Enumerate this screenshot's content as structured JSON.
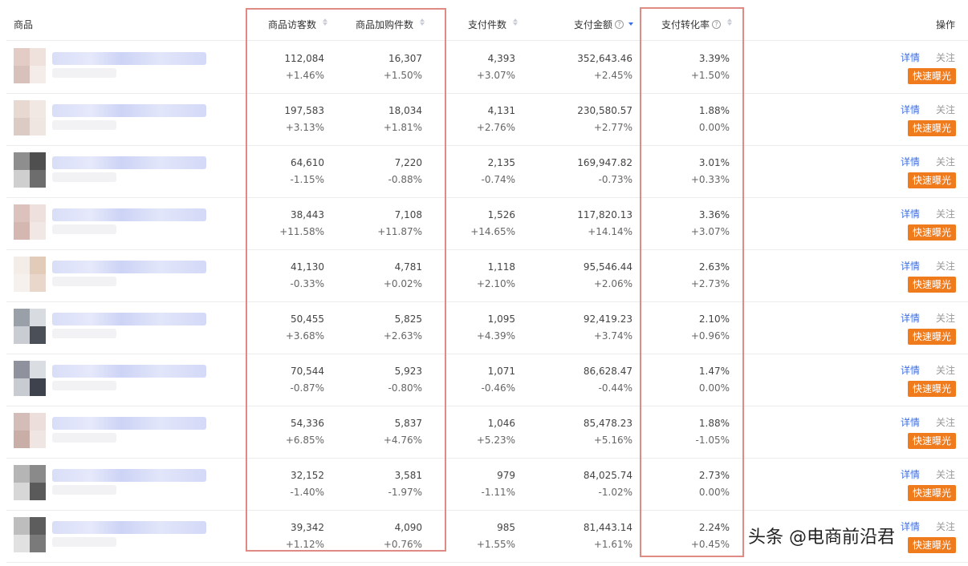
{
  "headers": {
    "product": "商品",
    "visitors": "商品访客数",
    "addcart": "商品加购件数",
    "payitems": "支付件数",
    "payamount": "支付金额",
    "convrate": "支付转化率",
    "ops": "操作",
    "help_glyph": "?"
  },
  "ops_labels": {
    "detail": "详情",
    "follow": "关注",
    "boost": "快速曝光"
  },
  "sort_state": {
    "column": "支付金额",
    "direction": "descending"
  },
  "colors": {
    "accent": "#3b6ee9",
    "boost_button": "#f07b1d",
    "highlight_box": "#e08a86"
  },
  "rows": [
    {
      "visitors": "112,084",
      "visitors_chg": "+1.46%",
      "addcart": "16,307",
      "addcart_chg": "+1.50%",
      "payitems": "4,393",
      "payitems_chg": "+3.07%",
      "payamount": "352,643.46",
      "payamount_chg": "+2.45%",
      "convrate": "3.39%",
      "convrate_chg": "+1.50%"
    },
    {
      "visitors": "197,583",
      "visitors_chg": "+3.13%",
      "addcart": "18,034",
      "addcart_chg": "+1.81%",
      "payitems": "4,131",
      "payitems_chg": "+2.76%",
      "payamount": "230,580.57",
      "payamount_chg": "+2.77%",
      "convrate": "1.88%",
      "convrate_chg": "0.00%"
    },
    {
      "visitors": "64,610",
      "visitors_chg": "-1.15%",
      "addcart": "7,220",
      "addcart_chg": "-0.88%",
      "payitems": "2,135",
      "payitems_chg": "-0.74%",
      "payamount": "169,947.82",
      "payamount_chg": "-0.73%",
      "convrate": "3.01%",
      "convrate_chg": "+0.33%"
    },
    {
      "visitors": "38,443",
      "visitors_chg": "+11.58%",
      "addcart": "7,108",
      "addcart_chg": "+11.87%",
      "payitems": "1,526",
      "payitems_chg": "+14.65%",
      "payamount": "117,820.13",
      "payamount_chg": "+14.14%",
      "convrate": "3.36%",
      "convrate_chg": "+3.07%"
    },
    {
      "visitors": "41,130",
      "visitors_chg": "-0.33%",
      "addcart": "4,781",
      "addcart_chg": "+0.02%",
      "payitems": "1,118",
      "payitems_chg": "+2.10%",
      "payamount": "95,546.44",
      "payamount_chg": "+2.06%",
      "convrate": "2.63%",
      "convrate_chg": "+2.73%"
    },
    {
      "visitors": "50,455",
      "visitors_chg": "+3.68%",
      "addcart": "5,825",
      "addcart_chg": "+2.63%",
      "payitems": "1,095",
      "payitems_chg": "+4.39%",
      "payamount": "92,419.23",
      "payamount_chg": "+3.74%",
      "convrate": "2.10%",
      "convrate_chg": "+0.96%"
    },
    {
      "visitors": "70,544",
      "visitors_chg": "-0.87%",
      "addcart": "5,923",
      "addcart_chg": "-0.80%",
      "payitems": "1,071",
      "payitems_chg": "-0.46%",
      "payamount": "86,628.47",
      "payamount_chg": "-0.44%",
      "convrate": "1.47%",
      "convrate_chg": "0.00%"
    },
    {
      "visitors": "54,336",
      "visitors_chg": "+6.85%",
      "addcart": "5,837",
      "addcart_chg": "+4.76%",
      "payitems": "1,046",
      "payitems_chg": "+5.23%",
      "payamount": "85,478.23",
      "payamount_chg": "+5.16%",
      "convrate": "1.88%",
      "convrate_chg": "-1.05%"
    },
    {
      "visitors": "32,152",
      "visitors_chg": "-1.40%",
      "addcart": "3,581",
      "addcart_chg": "-1.97%",
      "payitems": "979",
      "payitems_chg": "-1.11%",
      "payamount": "84,025.74",
      "payamount_chg": "-1.02%",
      "convrate": "2.73%",
      "convrate_chg": "0.00%"
    },
    {
      "visitors": "39,342",
      "visitors_chg": "+1.12%",
      "addcart": "4,090",
      "addcart_chg": "+0.76%",
      "payitems": "985",
      "payitems_chg": "+1.55%",
      "payamount": "81,443.14",
      "payamount_chg": "+1.61%",
      "convrate": "2.24%",
      "convrate_chg": "+0.45%"
    }
  ],
  "thumb_palettes": [
    [
      "#e3ccc6",
      "#efe1dc",
      "#d8c0bb",
      "#f3ece9"
    ],
    [
      "#e8d8d2",
      "#f1e7e3",
      "#dccac4",
      "#efe6e2"
    ],
    [
      "#8e8e8e",
      "#4f4f4f",
      "#cfcfcf",
      "#6d6d6d"
    ],
    [
      "#dcc2bd",
      "#eee0dc",
      "#d4b7b1",
      "#f1e8e6"
    ],
    [
      "#f4ece6",
      "#e2cbb9",
      "#f7f1ed",
      "#e8d7ca"
    ],
    [
      "#9aa0a8",
      "#d8dbe0",
      "#c9ccd2",
      "#4a4f58"
    ],
    [
      "#8f929c",
      "#dadde2",
      "#c8cbd1",
      "#3e424c"
    ],
    [
      "#d4bdb8",
      "#ecdfdb",
      "#c9aea8",
      "#efe6e3"
    ],
    [
      "#b5b5b5",
      "#8a8a8a",
      "#d7d7d7",
      "#5a5a5a"
    ],
    [
      "#bdbdbd",
      "#5d5d5d",
      "#e1e1e1",
      "#7a7a7a"
    ]
  ],
  "watermark": "头条 @电商前沿君"
}
